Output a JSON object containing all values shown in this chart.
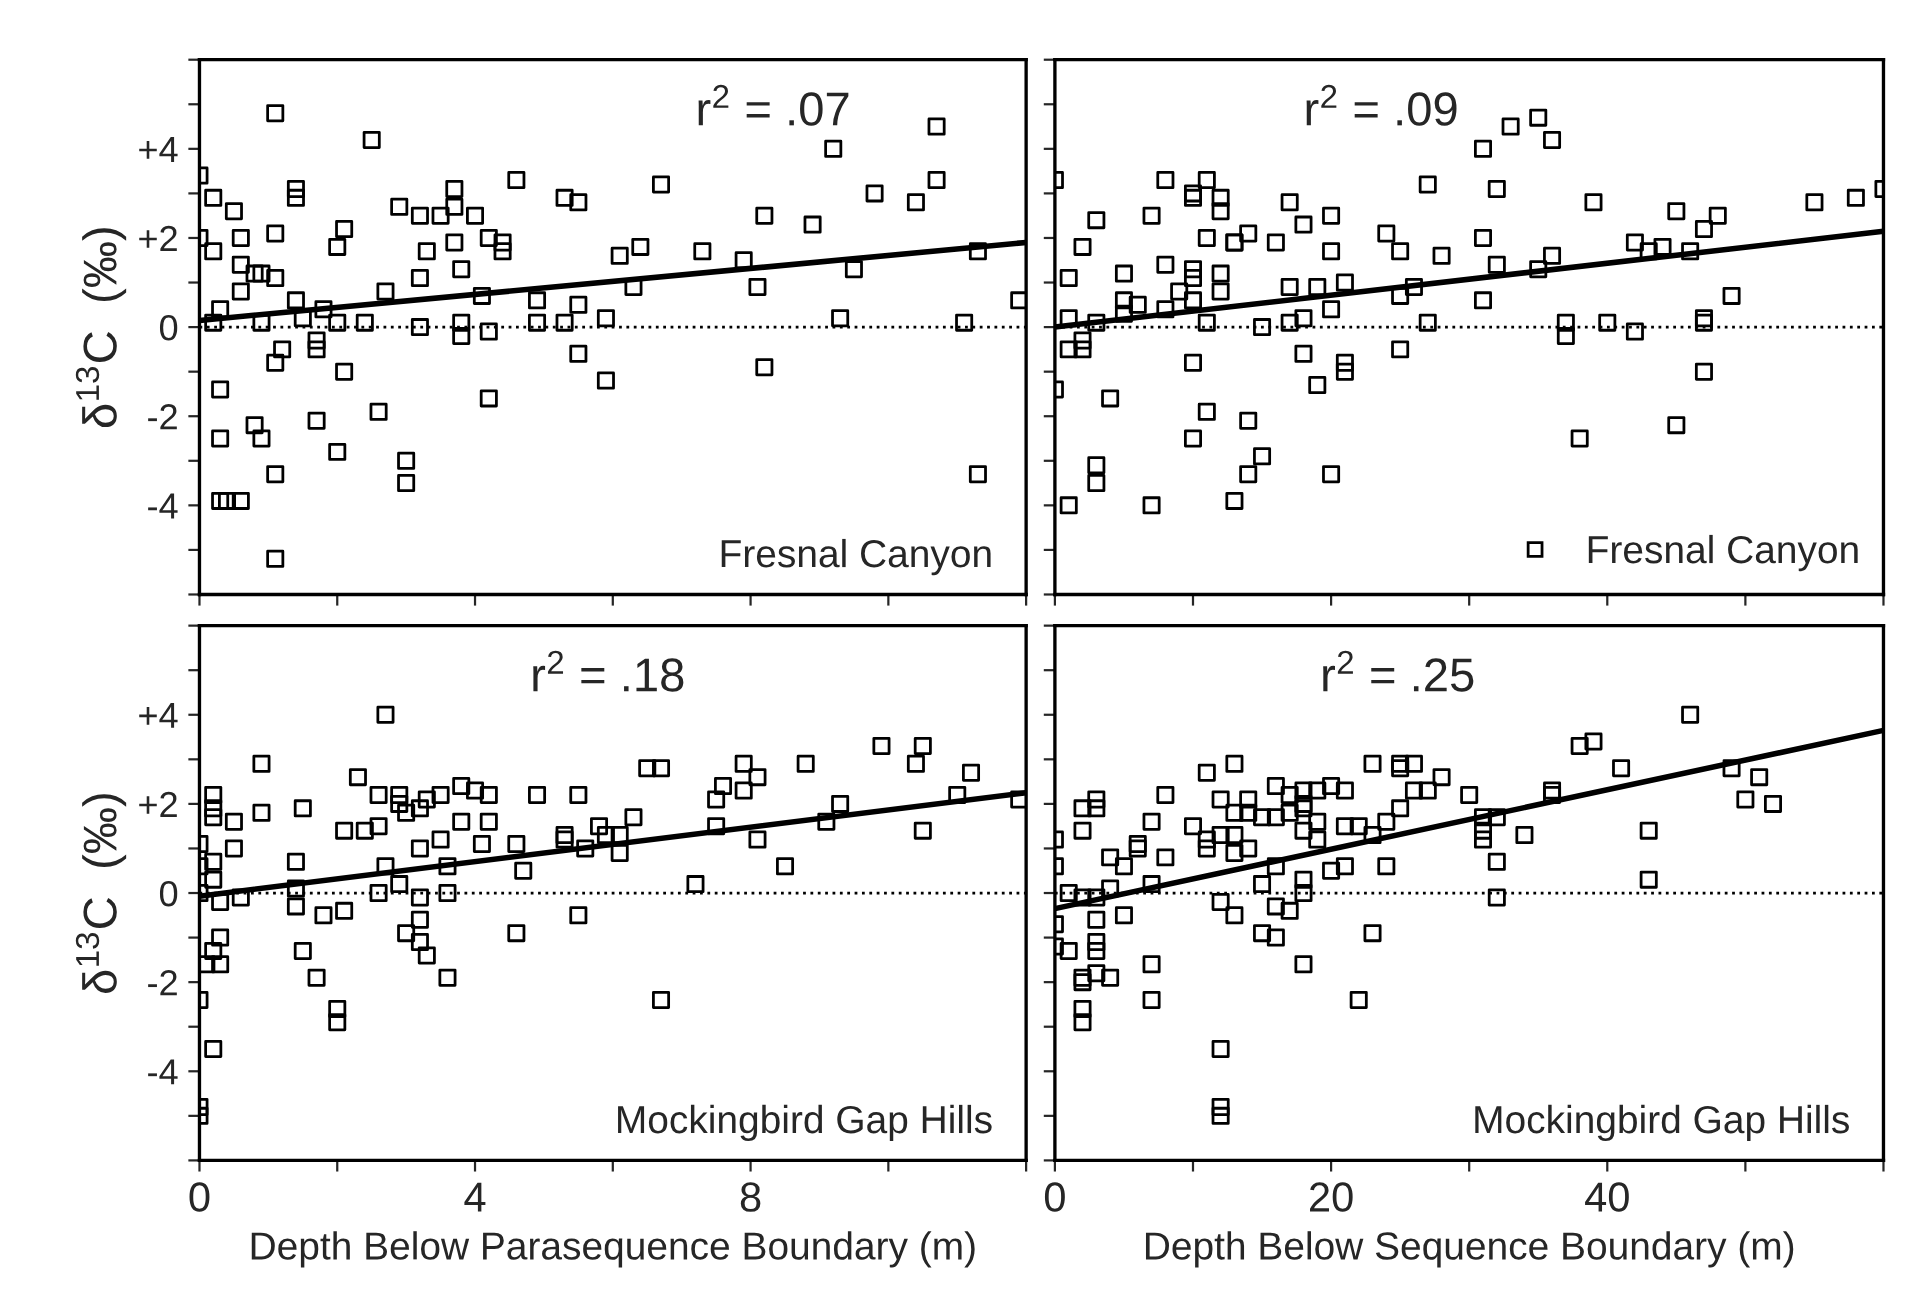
{
  "chart_data": [
    {
      "type": "scatter",
      "ylabel": "δ$^{13}$C  (‰)",
      "annotations": [
        "r$^{2}$ = .07",
        "Fresnal Canyon"
      ],
      "tick_labels": "y",
      "grid": false,
      "xlim": [
        0,
        12
      ],
      "xticks": [
        0,
        {
          "value": 2,
          "label": null
        },
        4,
        {
          "value": 6,
          "label": null
        },
        8,
        {
          "value": 10,
          "label": null
        },
        {
          "value": 12,
          "label": null
        }
      ],
      "ylim": [
        -6,
        6
      ],
      "yticks": [
        {
          "value": -6,
          "label": null
        },
        {
          "value": -5,
          "label": null
        },
        -4,
        {
          "value": -3,
          "label": null
        },
        -2,
        {
          "value": -1,
          "label": null
        },
        0,
        {
          "value": 1,
          "label": null
        },
        {
          "value": 2,
          "label": "+2"
        },
        {
          "value": 3,
          "label": null
        },
        {
          "value": 4,
          "label": "+4"
        },
        {
          "value": 5,
          "label": null
        },
        {
          "value": 6,
          "label": null
        }
      ],
      "ref_lines": [
        {
          "axis": "y",
          "value": 0,
          "line_style": "dotted",
          "color": "#000000"
        }
      ],
      "series": [
        {
          "color": "#000000",
          "marker": "square",
          "x": [
            1.1,
            2.5,
            0.0,
            0.2,
            0.5,
            1.4,
            1.4,
            0.0,
            0.2,
            0.6,
            1.1,
            0.6,
            0.8,
            0.9,
            1.1,
            0.6,
            0.3,
            0.2,
            0.9,
            1.4,
            1.5,
            2.0,
            2.1,
            2.0,
            1.8,
            1.7,
            1.7,
            1.2,
            1.1,
            2.1,
            0.3,
            2.6,
            1.7,
            0.8,
            0.9,
            0.3,
            2.0,
            1.1,
            3.0,
            3.0,
            0.3,
            0.4,
            0.6,
            1.1,
            2.4,
            2.7,
            2.9,
            3.2,
            3.2,
            3.3,
            3.5,
            3.7,
            3.7,
            4.0,
            3.7,
            3.8,
            3.2,
            3.8,
            3.8,
            4.1,
            4.2,
            4.2,
            4.4,
            4.4,
            4.6,
            4.2,
            4.9,
            4.9,
            5.3,
            5.3,
            5.5,
            5.5,
            5.5,
            5.9,
            5.9,
            6.1,
            6.4,
            6.3,
            6.7,
            7.3,
            7.9,
            8.1,
            8.2,
            8.2,
            8.9,
            9.2,
            9.3,
            9.5,
            9.8,
            10.4,
            10.7,
            10.7,
            11.1,
            11.3,
            11.3,
            11.9
          ],
          "values": [
            4.8,
            4.2,
            3.4,
            2.9,
            2.6,
            3.1,
            2.9,
            2.0,
            1.7,
            2.0,
            2.1,
            1.4,
            1.2,
            1.2,
            1.1,
            0.8,
            0.4,
            0.1,
            0.1,
            0.6,
            0.2,
            0.1,
            2.2,
            1.8,
            0.4,
            -0.3,
            -0.5,
            -0.5,
            -0.8,
            -1.0,
            -1.4,
            -1.9,
            -2.1,
            -2.2,
            -2.5,
            -2.5,
            -2.8,
            -3.3,
            -3.0,
            -3.5,
            -3.9,
            -3.9,
            -3.9,
            -5.2,
            0.1,
            0.8,
            2.7,
            1.1,
            2.5,
            1.7,
            2.5,
            2.7,
            3.1,
            2.5,
            1.9,
            1.3,
            0.0,
            0.1,
            -0.2,
            0.7,
            -0.1,
            2.0,
            1.7,
            1.9,
            3.3,
            -1.6,
            0.6,
            0.1,
            0.1,
            2.9,
            2.8,
            0.5,
            -0.6,
            0.2,
            -1.2,
            1.6,
            1.8,
            0.9,
            3.2,
            1.7,
            1.5,
            0.9,
            2.5,
            -0.9,
            2.3,
            4.0,
            0.2,
            1.3,
            3.0,
            2.8,
            3.3,
            4.5,
            0.1,
            1.7,
            -3.3,
            0.6
          ]
        },
        {
          "type": "line",
          "color": "#000000",
          "marker": "none",
          "line_style": "solid",
          "x": [
            0,
            12
          ],
          "values": [
            0.15,
            1.9
          ]
        }
      ]
    },
    {
      "type": "scatter",
      "tick_labels": false,
      "grid": false,
      "legend": "bottom right",
      "annotations": [
        "r$^{2}$ = .09"
      ],
      "xlim": [
        0,
        60
      ],
      "xticks": [
        0,
        {
          "value": 10,
          "label": null
        },
        20,
        {
          "value": 30,
          "label": null
        },
        40,
        {
          "value": 50,
          "label": null
        },
        {
          "value": 60,
          "label": null
        }
      ],
      "ylim": [
        -6,
        6
      ],
      "yticks": [
        {
          "value": -6,
          "label": null
        },
        {
          "value": -5,
          "label": null
        },
        {
          "value": -4,
          "label": null
        },
        {
          "value": -3,
          "label": null
        },
        {
          "value": -2,
          "label": null
        },
        {
          "value": -1,
          "label": null
        },
        {
          "value": 0,
          "label": null
        },
        {
          "value": 1,
          "label": null
        },
        {
          "value": 2,
          "label": null
        },
        {
          "value": 3,
          "label": null
        },
        {
          "value": 4,
          "label": null
        },
        {
          "value": 5,
          "label": null
        },
        {
          "value": 6,
          "label": null
        }
      ],
      "ref_lines": [
        {
          "axis": "y",
          "value": 0,
          "line_style": "dotted",
          "color": "#000000"
        }
      ],
      "series": [
        {
          "name": "Fresnal Canyon",
          "color": "#000000",
          "marker": "square",
          "x": [
            0,
            0,
            1,
            1,
            1,
            2,
            3,
            2,
            1,
            2,
            3,
            3,
            3,
            4,
            5,
            5,
            6,
            5,
            7,
            7,
            8,
            8,
            8,
            9,
            10,
            10,
            10,
            10,
            10,
            10,
            10,
            11,
            12,
            12,
            11,
            11,
            11,
            12,
            12,
            13,
            13,
            14,
            14,
            15,
            15,
            14,
            13,
            16,
            17,
            17,
            18,
            17,
            18,
            18,
            19,
            19,
            20,
            20,
            20,
            21,
            21,
            21,
            20,
            24,
            25,
            25,
            25,
            27,
            26,
            27,
            28,
            31,
            33,
            32,
            31,
            32,
            31,
            35,
            36,
            35,
            36,
            37,
            37,
            38,
            39,
            40,
            42,
            42,
            43,
            44,
            46,
            45,
            47,
            47,
            47,
            47,
            45,
            48,
            49,
            55,
            58,
            60
          ],
          "values": [
            3.3,
            -1.4,
            -4.0,
            1.1,
            0.2,
            1.8,
            0.1,
            -0.3,
            -0.5,
            -0.5,
            2.4,
            -3.1,
            -3.5,
            -1.6,
            1.2,
            0.6,
            0.5,
            0.3,
            -4.0,
            2.5,
            1.4,
            3.3,
            0.4,
            0.8,
            1.3,
            3.0,
            2.9,
            1.1,
            0.6,
            -0.8,
            -2.5,
            3.3,
            2.9,
            2.6,
            2.0,
            0.1,
            -1.9,
            1.2,
            0.8,
            1.9,
            1.9,
            2.1,
            -2.1,
            0.0,
            -2.9,
            -3.3,
            -3.9,
            1.9,
            2.8,
            0.9,
            2.3,
            0.1,
            0.2,
            -0.6,
            -1.3,
            0.9,
            2.5,
            1.7,
            0.4,
            1.0,
            -0.8,
            -1.0,
            -3.3,
            2.1,
            0.7,
            -0.5,
            1.7,
            3.2,
            0.9,
            0.1,
            1.6,
            4.0,
            4.5,
            3.1,
            2.0,
            1.4,
            0.6,
            4.7,
            4.2,
            1.3,
            1.6,
            0.1,
            -0.2,
            -2.5,
            2.8,
            0.1,
            1.9,
            -0.1,
            1.7,
            1.8,
            1.7,
            2.6,
            2.2,
            0.1,
            0.2,
            -1.0,
            -2.2,
            2.5,
            0.7,
            2.8,
            2.9,
            3.1
          ]
        },
        {
          "type": "line",
          "color": "#000000",
          "marker": "none",
          "line_style": "solid",
          "x": [
            0,
            60
          ],
          "values": [
            0.0,
            2.15
          ]
        }
      ]
    },
    {
      "type": "scatter",
      "ylabel": "δ$^{13}$C  (‰)",
      "xlabel": "Depth Below Parasequence Boundary (m)",
      "annotations": [
        "r$^{2}$ = .18",
        "Mockingbird Gap Hills"
      ],
      "grid": false,
      "xlim": [
        0,
        12
      ],
      "xticks": [
        0,
        {
          "value": 2,
          "label": null
        },
        4,
        {
          "value": 6,
          "label": null
        },
        8,
        {
          "value": 10,
          "label": null
        },
        {
          "value": 12,
          "label": null
        }
      ],
      "ylim": [
        -6,
        6
      ],
      "yticks": [
        {
          "value": -6,
          "label": null
        },
        {
          "value": -5,
          "label": null
        },
        -4,
        {
          "value": -3,
          "label": null
        },
        -2,
        {
          "value": -1,
          "label": null
        },
        0,
        {
          "value": 1,
          "label": null
        },
        {
          "value": 2,
          "label": "+2"
        },
        {
          "value": 3,
          "label": null
        },
        {
          "value": 4,
          "label": "+4"
        },
        {
          "value": 5,
          "label": null
        },
        {
          "value": 6,
          "label": null
        }
      ],
      "ref_lines": [
        {
          "axis": "y",
          "value": 0,
          "line_style": "dotted",
          "color": "#000000"
        }
      ],
      "series": [
        {
          "color": "#000000",
          "marker": "square",
          "x": [
            0.0,
            0.0,
            0.0,
            0.0,
            0.0,
            0.0,
            0.2,
            0.2,
            0.2,
            0.2,
            0.2,
            0.3,
            0.3,
            0.2,
            0.1,
            0.3,
            0.2,
            0.5,
            0.5,
            0.6,
            0.9,
            0.9,
            1.4,
            1.4,
            1.4,
            1.5,
            1.5,
            1.7,
            1.8,
            2.0,
            2.0,
            2.1,
            2.1,
            2.3,
            2.4,
            2.6,
            2.6,
            2.7,
            2.7,
            2.6,
            2.9,
            2.9,
            2.9,
            3.0,
            3.0,
            3.2,
            3.2,
            3.2,
            3.2,
            3.2,
            3.3,
            3.3,
            3.5,
            3.5,
            3.6,
            3.6,
            3.6,
            3.8,
            4.0,
            3.8,
            4.1,
            4.2,
            4.2,
            4.6,
            4.6,
            4.7,
            4.9,
            5.3,
            5.3,
            5.5,
            5.5,
            5.6,
            5.8,
            5.9,
            6.1,
            6.1,
            6.3,
            6.5,
            6.7,
            6.7,
            7.2,
            7.5,
            7.6,
            7.5,
            7.9,
            7.9,
            8.1,
            8.1,
            8.5,
            8.8,
            9.1,
            9.3,
            9.9,
            10.4,
            10.5,
            10.5,
            11.0,
            11.2,
            11.9
          ],
          "values": [
            1.1,
            0.6,
            0.0,
            -2.4,
            -4.8,
            -5.0,
            2.2,
            1.9,
            1.7,
            0.7,
            0.3,
            -0.2,
            -1.0,
            -1.3,
            -1.6,
            -1.6,
            -3.5,
            1.6,
            1.0,
            -0.1,
            2.9,
            1.8,
            0.7,
            0.1,
            -0.3,
            1.9,
            -1.3,
            -1.9,
            -0.5,
            -2.6,
            -2.9,
            -0.4,
            1.4,
            2.6,
            1.4,
            1.5,
            2.2,
            4.0,
            0.6,
            0.0,
            2.2,
            2.0,
            0.2,
            -0.9,
            1.8,
            1.9,
            1.0,
            -0.1,
            -0.6,
            -1.1,
            -1.4,
            2.1,
            1.2,
            2.2,
            0.6,
            0.0,
            -1.9,
            2.4,
            2.3,
            1.6,
            1.1,
            2.2,
            1.6,
            1.1,
            -0.9,
            0.5,
            2.2,
            1.3,
            1.2,
            -0.5,
            2.2,
            1.0,
            1.5,
            1.3,
            0.9,
            1.3,
            1.7,
            2.8,
            2.8,
            -2.4,
            0.2,
            2.1,
            2.4,
            1.5,
            2.9,
            2.3,
            2.6,
            1.2,
            0.6,
            2.9,
            1.6,
            2.0,
            3.3,
            2.9,
            3.3,
            1.4,
            2.2,
            2.7,
            2.1
          ]
        },
        {
          "type": "line",
          "color": "#000000",
          "marker": "none",
          "line_style": "solid",
          "x": [
            0,
            12
          ],
          "values": [
            -0.07,
            2.25
          ]
        }
      ]
    },
    {
      "type": "scatter",
      "xlabel": "Depth Below Sequence Boundary (m)",
      "annotations": [
        "r$^{2}$ = .25",
        "Mockingbird Gap Hills"
      ],
      "tick_labels": "x",
      "grid": false,
      "xlim": [
        0,
        60
      ],
      "xticks": [
        0,
        {
          "value": 10,
          "label": null
        },
        20,
        {
          "value": 30,
          "label": null
        },
        40,
        {
          "value": 50,
          "label": null
        },
        {
          "value": 60,
          "label": null
        }
      ],
      "ylim": [
        -6,
        6
      ],
      "yticks": [
        {
          "value": -6,
          "label": null
        },
        {
          "value": -5,
          "label": null
        },
        {
          "value": -4,
          "label": null
        },
        {
          "value": -3,
          "label": null
        },
        {
          "value": -2,
          "label": null
        },
        {
          "value": -1,
          "label": null
        },
        {
          "value": 0,
          "label": null
        },
        {
          "value": 1,
          "label": null
        },
        {
          "value": 2,
          "label": null
        },
        {
          "value": 3,
          "label": null
        },
        {
          "value": 4,
          "label": null
        },
        {
          "value": 5,
          "label": null
        },
        {
          "value": 6,
          "label": null
        }
      ],
      "ref_lines": [
        {
          "axis": "y",
          "value": 0,
          "line_style": "dotted",
          "color": "#000000"
        }
      ],
      "series": [
        {
          "color": "#000000",
          "marker": "square",
          "x": [
            0,
            0,
            0,
            0,
            1,
            2,
            2,
            1,
            2,
            2,
            2,
            2,
            2,
            3,
            3,
            3,
            3,
            3,
            4,
            3,
            3,
            4,
            4,
            5,
            5,
            6,
            6,
            7,
            7,
            7,
            7,
            8,
            8,
            10,
            11,
            11,
            11,
            13,
            12,
            12,
            13,
            12,
            12,
            12,
            12,
            13,
            14,
            14,
            13,
            13,
            14,
            15,
            15,
            15,
            16,
            16,
            16,
            16,
            17,
            16,
            17,
            17,
            18,
            18,
            18,
            18,
            19,
            18,
            18,
            18,
            19,
            19,
            20,
            20,
            21,
            21,
            21,
            22,
            22,
            23,
            23,
            24,
            24,
            23,
            25,
            25,
            26,
            25,
            26,
            27,
            28,
            30,
            31,
            31,
            31,
            32,
            32,
            32,
            34,
            36,
            36,
            38,
            39,
            41,
            43,
            43,
            46,
            49,
            51,
            50,
            52
          ],
          "values": [
            1.2,
            0.6,
            -0.7,
            -1.2,
            0.0,
            1.9,
            1.4,
            -1.3,
            -1.9,
            -2.0,
            -2.6,
            -2.9,
            -0.1,
            -0.1,
            -0.6,
            -1.1,
            -1.3,
            -1.8,
            -1.9,
            1.9,
            2.1,
            0.1,
            0.8,
            0.6,
            -0.5,
            1.0,
            1.1,
            1.6,
            0.2,
            -1.6,
            -2.4,
            2.2,
            0.8,
            1.5,
            1.0,
            1.2,
            2.7,
            2.9,
            2.1,
            1.3,
            1.3,
            -0.2,
            -3.5,
            -4.8,
            -5.0,
            0.9,
            2.1,
            1.0,
            -0.5,
            1.8,
            1.8,
            0.2,
            -0.9,
            1.7,
            -1.0,
            1.7,
            2.4,
            0.6,
            1.8,
            -0.3,
            2.2,
            -0.4,
            2.3,
            2.0,
            1.9,
            1.4,
            1.2,
            0.3,
            0.0,
            -1.6,
            1.6,
            2.3,
            2.4,
            0.5,
            0.6,
            1.5,
            2.3,
            -2.4,
            1.5,
            -0.9,
            1.3,
            0.6,
            1.6,
            2.9,
            2.9,
            2.8,
            2.9,
            1.9,
            2.3,
            2.3,
            2.6,
            2.2,
            1.7,
            1.4,
            1.2,
            1.7,
            0.7,
            -0.1,
            1.3,
            2.2,
            2.3,
            3.3,
            3.4,
            2.8,
            1.4,
            0.3,
            4.0,
            2.8,
            2.6,
            2.1,
            2.0
          ]
        },
        {
          "type": "line",
          "color": "#000000",
          "marker": "none",
          "line_style": "solid",
          "x": [
            0,
            60
          ],
          "values": [
            -0.35,
            3.65
          ]
        }
      ]
    }
  ]
}
